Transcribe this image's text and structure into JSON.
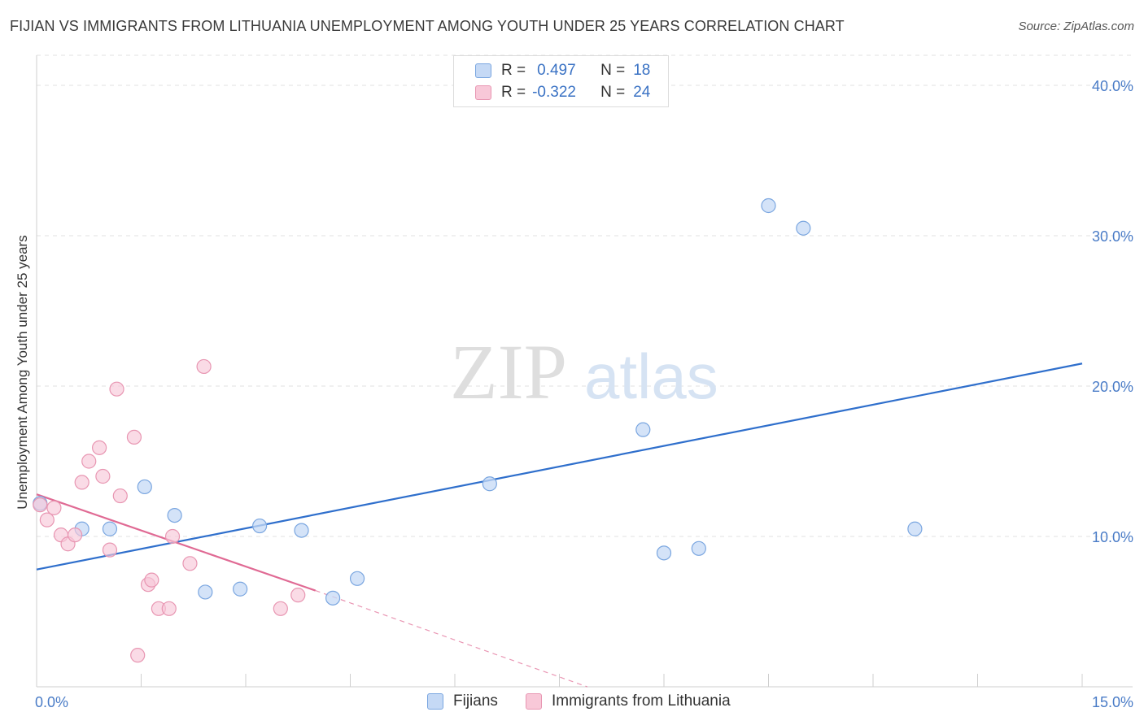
{
  "header": {
    "title": "FIJIAN VS IMMIGRANTS FROM LITHUANIA UNEMPLOYMENT AMONG YOUTH UNDER 25 YEARS CORRELATION CHART",
    "source": "Source: ZipAtlas.com"
  },
  "watermark": {
    "zip": "ZIP",
    "atlas": "atlas"
  },
  "legend": {
    "rows": [
      {
        "r_key": "R =",
        "r_value": "0.497",
        "n_key": "N =",
        "n_value": "18"
      },
      {
        "r_key": "R =",
        "r_value": "-0.322",
        "n_key": "N =",
        "n_value": "24"
      }
    ]
  },
  "colors": {
    "fijians_fill": "#c5d9f5",
    "fijians_stroke": "#7aa6e0",
    "fijians_line": "#2f6fcc",
    "lithuania_fill": "#f8c8d8",
    "lithuania_stroke": "#e896b2",
    "lithuania_line": "#e06a94",
    "tick_text": "#4a7cc7"
  },
  "chart_data": {
    "type": "scatter",
    "xlabel": "",
    "ylabel": "Unemployment Among Youth under 25 years",
    "xlim": [
      0,
      15
    ],
    "ylim": [
      0,
      42
    ],
    "x_tick_labels": [
      "0.0%",
      "15.0%"
    ],
    "y_ticks": [
      10,
      20,
      30,
      40
    ],
    "y_tick_labels": [
      "10.0%",
      "20.0%",
      "30.0%",
      "40.0%"
    ],
    "grid": true,
    "legend_position": "top-center",
    "series": [
      {
        "name": "Fijians",
        "points": [
          [
            0.05,
            12.2
          ],
          [
            0.65,
            10.5
          ],
          [
            1.05,
            10.5
          ],
          [
            1.55,
            13.3
          ],
          [
            1.98,
            11.4
          ],
          [
            2.42,
            6.3
          ],
          [
            2.92,
            6.5
          ],
          [
            3.2,
            10.7
          ],
          [
            3.8,
            10.4
          ],
          [
            4.25,
            5.9
          ],
          [
            4.6,
            7.2
          ],
          [
            6.5,
            13.5
          ],
          [
            8.7,
            17.1
          ],
          [
            9.0,
            8.9
          ],
          [
            9.5,
            9.2
          ],
          [
            10.5,
            32.0
          ],
          [
            11.0,
            30.5
          ],
          [
            12.6,
            10.5
          ]
        ],
        "trend": {
          "x": [
            0,
            15
          ],
          "y": [
            7.8,
            21.5
          ]
        }
      },
      {
        "name": "Immigrants from Lithuania",
        "points": [
          [
            0.05,
            12.1
          ],
          [
            0.15,
            11.1
          ],
          [
            0.25,
            11.9
          ],
          [
            0.35,
            10.1
          ],
          [
            0.45,
            9.5
          ],
          [
            0.55,
            10.1
          ],
          [
            0.65,
            13.6
          ],
          [
            0.75,
            15.0
          ],
          [
            0.9,
            15.9
          ],
          [
            0.95,
            14.0
          ],
          [
            1.05,
            9.1
          ],
          [
            1.15,
            19.8
          ],
          [
            1.2,
            12.7
          ],
          [
            1.4,
            16.6
          ],
          [
            1.45,
            2.1
          ],
          [
            1.6,
            6.8
          ],
          [
            1.65,
            7.1
          ],
          [
            1.75,
            5.2
          ],
          [
            1.9,
            5.2
          ],
          [
            1.95,
            10.0
          ],
          [
            2.2,
            8.2
          ],
          [
            2.4,
            21.3
          ],
          [
            3.5,
            5.2
          ],
          [
            3.75,
            6.1
          ]
        ],
        "trend": {
          "x": [
            0,
            4.0
          ],
          "y": [
            12.8,
            6.4
          ]
        },
        "trend_extension": {
          "x": [
            4.0,
            7.9
          ],
          "y": [
            6.4,
            0
          ]
        }
      }
    ]
  }
}
